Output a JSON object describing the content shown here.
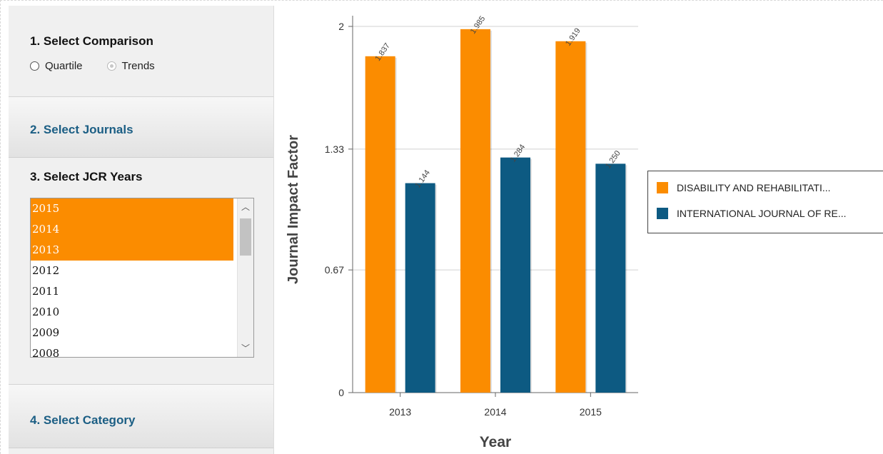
{
  "sidebar": {
    "section1": {
      "title": "1. Select Comparison",
      "options": [
        {
          "label": "Quartile",
          "selected": false,
          "enabled": true
        },
        {
          "label": "Trends",
          "selected": true,
          "enabled": false
        }
      ]
    },
    "section2": {
      "title": "2. Select Journals"
    },
    "section3": {
      "title": "3. Select JCR Years",
      "years": [
        "2015",
        "2014",
        "2013",
        "2012",
        "2011",
        "2010",
        "2009",
        "2008"
      ],
      "selected_years": [
        "2015",
        "2014",
        "2013"
      ]
    },
    "section4": {
      "title": "4. Select Category"
    }
  },
  "colors": {
    "orange": "#fb8c00",
    "blue": "#0d5a82",
    "link": "#1b5e84"
  },
  "chart_data": {
    "type": "bar",
    "title": "",
    "xlabel": "Year",
    "ylabel": "Journal Impact Factor",
    "categories": [
      "2013",
      "2014",
      "2015"
    ],
    "ylim": [
      0,
      2
    ],
    "yticks": [
      "0",
      "0.67",
      "1.33",
      "2"
    ],
    "grid": true,
    "legend_placement": "right",
    "series": [
      {
        "name": "DISABILITY AND REHABILITATI...",
        "color": "#fb8c00",
        "values": [
          1.837,
          1.985,
          1.919
        ],
        "labels": [
          "1.837",
          "1.985",
          "1.919"
        ]
      },
      {
        "name": "INTERNATIONAL JOURNAL OF RE...",
        "color": "#0d5a82",
        "values": [
          1.144,
          1.284,
          1.25
        ],
        "labels": [
          "1.144",
          "1.284",
          "1.250"
        ]
      }
    ]
  }
}
